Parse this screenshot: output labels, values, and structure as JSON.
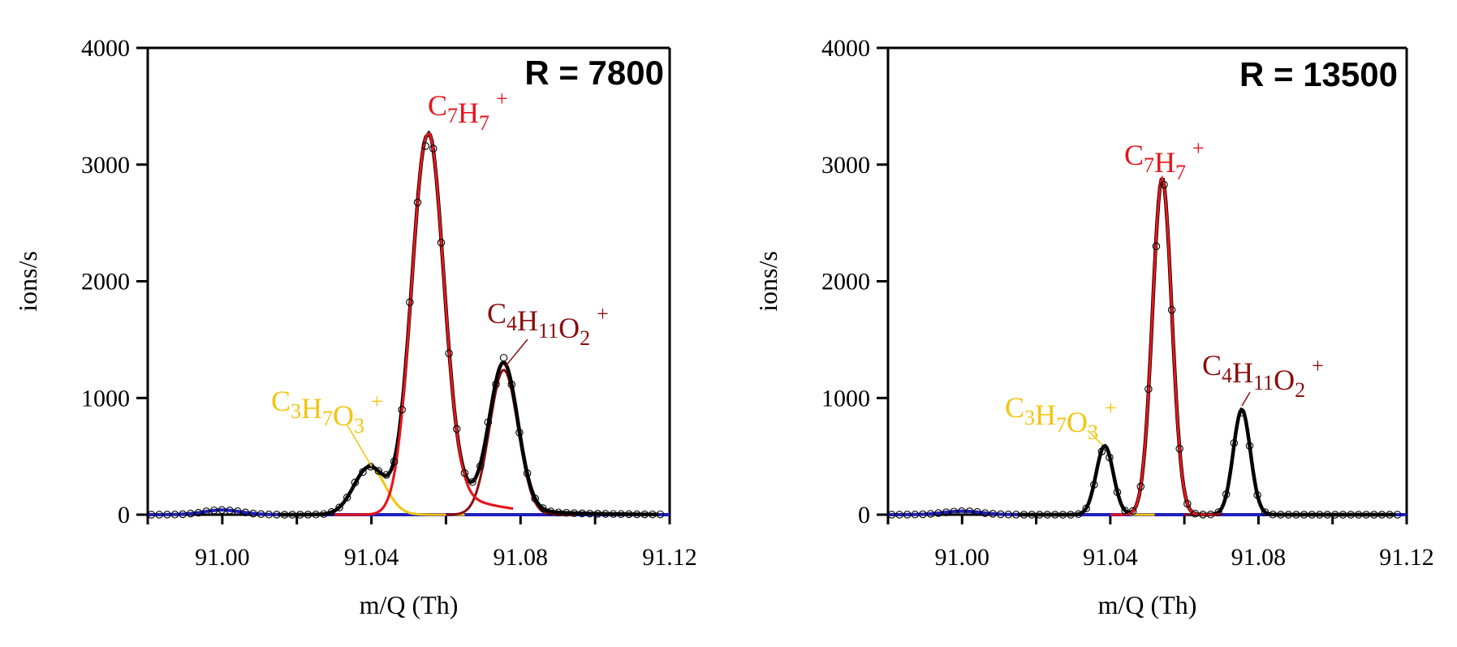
{
  "chart_data": [
    {
      "type": "line",
      "title": "R = 7800",
      "xlabel": "m/Q (Th)",
      "ylabel": "ions/s",
      "xlim": [
        90.98,
        91.12
      ],
      "ylim": [
        0,
        4000
      ],
      "xticks": [
        "91.00",
        "91.04",
        "91.08",
        "91.12"
      ],
      "yticks": [
        "0",
        "1000",
        "2000",
        "3000",
        "4000"
      ],
      "components": [
        {
          "name": "C7H7+",
          "color": "#e8141b",
          "center": 91.055,
          "height": 3250,
          "sigma": 0.0042,
          "range": [
            91.03,
            91.078
          ],
          "label": {
            "base": "C",
            "parts": [
              [
                "C",
                ""
              ],
              [
                "7",
                "sub"
              ],
              [
                "H",
                ""
              ],
              [
                "7",
                "sub"
              ],
              [
                "+",
                "sup"
              ]
            ]
          }
        },
        {
          "name": "C4H11O2+",
          "color": "#8b0d0d",
          "center": 91.0755,
          "height": 1240,
          "sigma": 0.0038,
          "range": [
            91.06,
            91.095
          ],
          "label": {
            "parts": [
              [
                "C",
                ""
              ],
              [
                "4",
                "sub"
              ],
              [
                "H",
                ""
              ],
              [
                "11",
                "sub"
              ],
              [
                "O",
                ""
              ],
              [
                "2",
                "sub"
              ],
              [
                "+",
                "sup"
              ]
            ]
          }
        },
        {
          "name": "C3H7O3+",
          "color": "#f2c50f",
          "center": 91.0395,
          "height": 410,
          "sigma": 0.0042,
          "range": [
            91.015,
            91.065
          ],
          "label": {
            "parts": [
              [
                "C",
                ""
              ],
              [
                "3",
                "sub"
              ],
              [
                "H",
                ""
              ],
              [
                "7",
                "sub"
              ],
              [
                "O",
                ""
              ],
              [
                "3",
                "sub"
              ],
              [
                "+",
                "sup"
              ]
            ]
          }
        },
        {
          "name": "baseline",
          "color": "#1f1fbf",
          "center": 91.0,
          "height": 40,
          "sigma": 0.005,
          "range": [
            90.98,
            91.12
          ]
        }
      ],
      "sum_color": "#000000",
      "points_x_range": [
        90.98,
        91.12
      ],
      "points_step": 0.0021
    },
    {
      "type": "line",
      "title": "R = 13500",
      "xlabel": "m/Q (Th)",
      "ylabel": "ions/s",
      "xlim": [
        90.98,
        91.12
      ],
      "ylim": [
        0,
        4000
      ],
      "xticks": [
        "91.00",
        "91.04",
        "91.08",
        "91.12"
      ],
      "yticks": [
        "0",
        "1000",
        "2000",
        "3000",
        "4000"
      ],
      "components": [
        {
          "name": "C7H7+",
          "color": "#e8141b",
          "center": 91.054,
          "height": 2880,
          "sigma": 0.0026,
          "range": [
            91.04,
            91.07
          ],
          "label": {
            "parts": [
              [
                "C",
                ""
              ],
              [
                "7",
                "sub"
              ],
              [
                "H",
                ""
              ],
              [
                "7",
                "sub"
              ],
              [
                "+",
                "sup"
              ]
            ]
          }
        },
        {
          "name": "C4H11O2+",
          "color": "#8b0d0d",
          "center": 91.0755,
          "height": 900,
          "sigma": 0.0023,
          "range": [
            91.06,
            91.095
          ],
          "label": {
            "parts": [
              [
                "C",
                ""
              ],
              [
                "4",
                "sub"
              ],
              [
                "H",
                ""
              ],
              [
                "11",
                "sub"
              ],
              [
                "O",
                ""
              ],
              [
                "2",
                "sub"
              ],
              [
                "+",
                "sup"
              ]
            ]
          }
        },
        {
          "name": "C3H7O3+",
          "color": "#f2c50f",
          "center": 91.0385,
          "height": 590,
          "sigma": 0.0023,
          "range": [
            91.022,
            91.052
          ],
          "label": {
            "parts": [
              [
                "C",
                ""
              ],
              [
                "3",
                "sub"
              ],
              [
                "H",
                ""
              ],
              [
                "7",
                "sub"
              ],
              [
                "O",
                ""
              ],
              [
                "3",
                "sub"
              ],
              [
                "+",
                "sup"
              ]
            ]
          }
        },
        {
          "name": "baseline",
          "color": "#1f1fbf",
          "center": 91.0,
          "height": 30,
          "sigma": 0.005,
          "range": [
            90.98,
            91.12
          ]
        }
      ],
      "sum_color": "#000000",
      "points_x_range": [
        90.98,
        91.12
      ],
      "points_step": 0.0021
    }
  ]
}
